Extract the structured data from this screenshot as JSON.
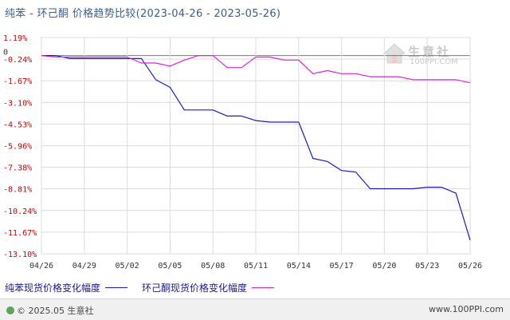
{
  "title": "纯苯 - 环己酮 价格趋势比较(2023-04-26 - 2023-05-26)",
  "colors": {
    "series1": "#1a1acc",
    "series2": "#dd22dd",
    "ytick": "#cc0000",
    "grid": "#dcdcdc"
  },
  "chart_data": {
    "type": "line",
    "title": "纯苯 - 环己酮 价格趋势比较(2023-04-26 - 2023-05-26)",
    "ylim": [
      -13.1,
      1.19
    ],
    "yticks": [
      "1.19%",
      "-0.24%",
      "-1.67%",
      "-3.10%",
      "-4.53%",
      "-5.96%",
      "-7.38%",
      "-8.81%",
      "-10.24%",
      "-11.67%",
      "-13.10%"
    ],
    "ytick_values": [
      1.19,
      -0.24,
      -1.67,
      -3.1,
      -4.53,
      -5.96,
      -7.38,
      -8.81,
      -10.24,
      -11.67,
      -13.1
    ],
    "xticks": [
      "04/26",
      "04/29",
      "05/02",
      "05/05",
      "05/08",
      "05/11",
      "05/14",
      "05/17",
      "05/20",
      "05/23",
      "05/26"
    ],
    "zero_label": "0",
    "series": [
      {
        "name": "纯苯现货价格变化幅度",
        "x": [
          "04/26",
          "04/27",
          "04/28",
          "04/29",
          "04/30",
          "05/01",
          "05/02",
          "05/03",
          "05/04",
          "05/05",
          "05/06",
          "05/07",
          "05/08",
          "05/09",
          "05/10",
          "05/11",
          "05/12",
          "05/13",
          "05/14",
          "05/15",
          "05/16",
          "05/17",
          "05/18",
          "05/19",
          "05/20",
          "05/21",
          "05/22",
          "05/23",
          "05/24",
          "05/25",
          "05/26"
        ],
        "values": [
          0,
          0,
          -0.2,
          -0.2,
          -0.2,
          -0.2,
          -0.2,
          -0.2,
          -1.6,
          -2.1,
          -3.6,
          -3.6,
          -3.6,
          -4.0,
          -4.0,
          -4.3,
          -4.4,
          -4.4,
          -4.4,
          -6.8,
          -7.0,
          -7.6,
          -7.7,
          -8.8,
          -8.8,
          -8.8,
          -8.8,
          -8.7,
          -8.7,
          -9.1,
          -12.2
        ]
      },
      {
        "name": "环己酮现货价格变化幅度",
        "x": [
          "04/26",
          "04/27",
          "04/28",
          "04/29",
          "04/30",
          "05/01",
          "05/02",
          "05/03",
          "05/04",
          "05/05",
          "05/06",
          "05/07",
          "05/08",
          "05/09",
          "05/10",
          "05/11",
          "05/12",
          "05/13",
          "05/14",
          "05/15",
          "05/16",
          "05/17",
          "05/18",
          "05/19",
          "05/20",
          "05/21",
          "05/22",
          "05/23",
          "05/24",
          "05/25",
          "05/26"
        ],
        "values": [
          0,
          -0.1,
          -0.1,
          -0.1,
          -0.1,
          -0.1,
          -0.1,
          -0.5,
          -0.5,
          -0.7,
          -0.3,
          0,
          0,
          -0.8,
          -0.8,
          -0.1,
          -0.1,
          -0.3,
          -0.3,
          -1.2,
          -1.0,
          -1.2,
          -1.2,
          -1.4,
          -1.4,
          -1.4,
          -1.6,
          -1.6,
          -1.6,
          -1.6,
          -1.8
        ]
      }
    ]
  },
  "legend": [
    {
      "label": "纯苯现货价格变化幅度",
      "color": "#1a1acc"
    },
    {
      "label": "环己酮现货价格变化幅度",
      "color": "#dd22dd"
    }
  ],
  "watermark": {
    "text": "生意社",
    "url": "100PPI.COM"
  },
  "footer": {
    "left": "© 2025.05 生意社",
    "right": "www.100PPI.com"
  }
}
